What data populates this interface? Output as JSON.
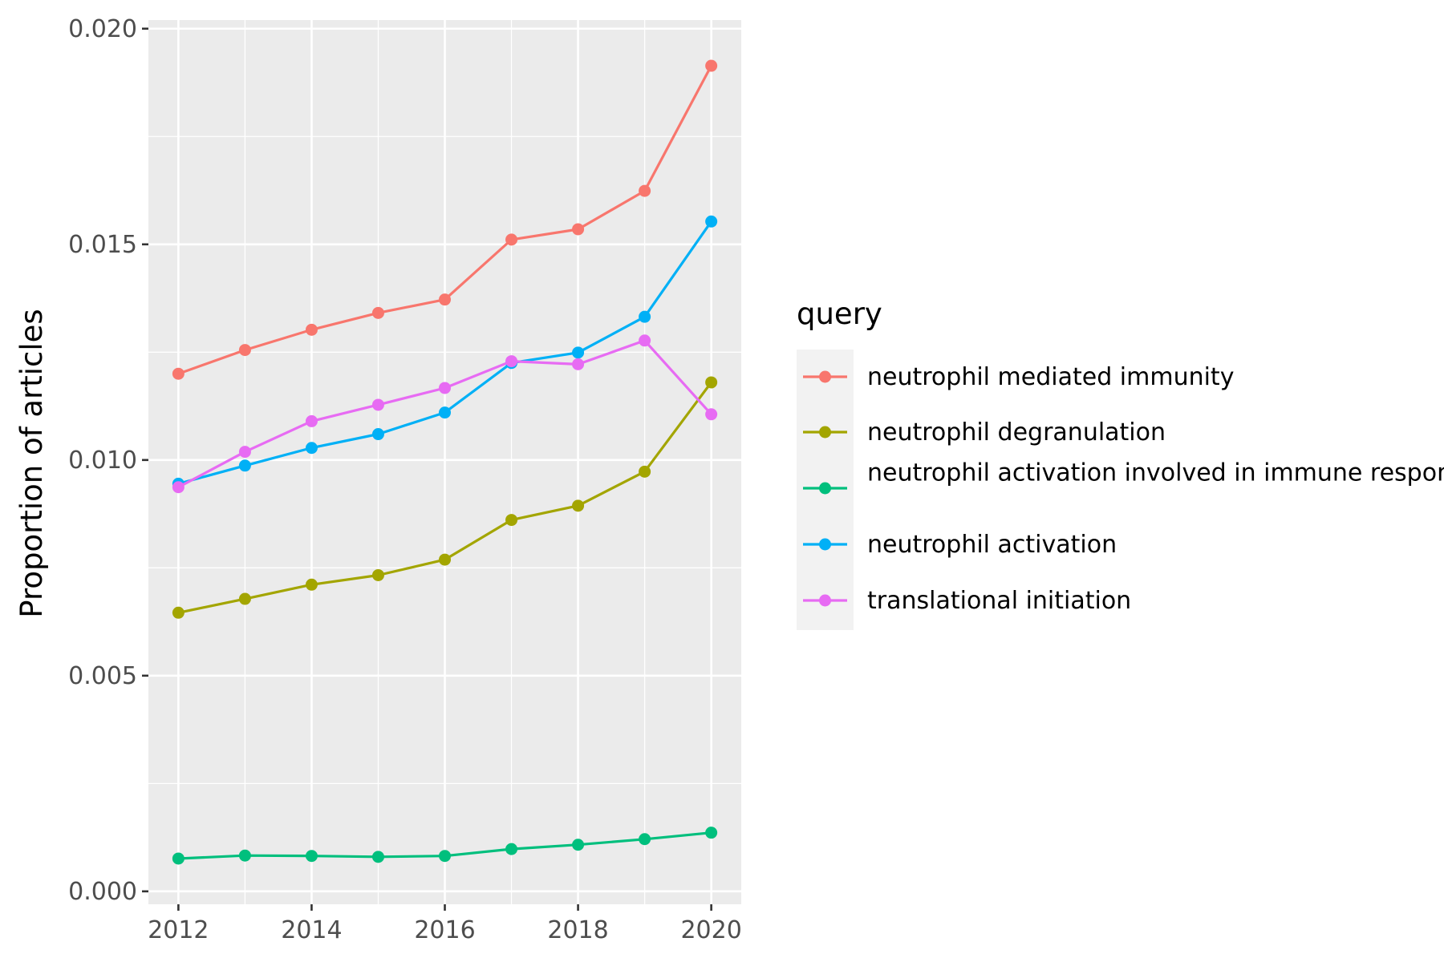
{
  "chart_data": {
    "type": "line",
    "title": "",
    "xlabel": "",
    "ylabel": "Proportion of articles",
    "x": [
      2012,
      2013,
      2014,
      2015,
      2016,
      2017,
      2018,
      2019,
      2020
    ],
    "xlim": [
      2011.55,
      2020.45
    ],
    "ylim": [
      -0.0003,
      0.0202
    ],
    "x_ticks": [
      2012,
      2014,
      2016,
      2018,
      2020
    ],
    "x_tick_labels": [
      "2012",
      "2014",
      "2016",
      "2018",
      "2020"
    ],
    "y_ticks": [
      0.0,
      0.005,
      0.01,
      0.015,
      0.02
    ],
    "y_tick_labels": [
      "0.000",
      "0.005",
      "0.010",
      "0.015",
      "0.020"
    ],
    "grid": true,
    "legend": {
      "title": "query",
      "placement": "right"
    },
    "series": [
      {
        "name": "neutrophil mediated immunity",
        "color": "#F8766D",
        "values": [
          0.012,
          0.01255,
          0.01302,
          0.01341,
          0.01372,
          0.01511,
          0.01535,
          0.01624,
          0.01914
        ]
      },
      {
        "name": "neutrophil degranulation",
        "color": "#A3A500",
        "values": [
          0.00646,
          0.00678,
          0.00711,
          0.00733,
          0.00769,
          0.00861,
          0.00894,
          0.00973,
          0.0118
        ]
      },
      {
        "name": "neutrophil activation involved in immune response",
        "color": "#00BF7D",
        "values": [
          0.00076,
          0.00083,
          0.00082,
          0.0008,
          0.00082,
          0.00098,
          0.00108,
          0.00121,
          0.00136
        ]
      },
      {
        "name": "neutrophil activation",
        "color": "#00B0F6",
        "values": [
          0.00945,
          0.00987,
          0.01028,
          0.0106,
          0.0111,
          0.01225,
          0.01249,
          0.01332,
          0.01553
        ]
      },
      {
        "name": "translational initiation",
        "color": "#E76BF3",
        "values": [
          0.00937,
          0.01019,
          0.0109,
          0.01128,
          0.01167,
          0.01229,
          0.01222,
          0.01277,
          0.01106
        ]
      }
    ]
  }
}
